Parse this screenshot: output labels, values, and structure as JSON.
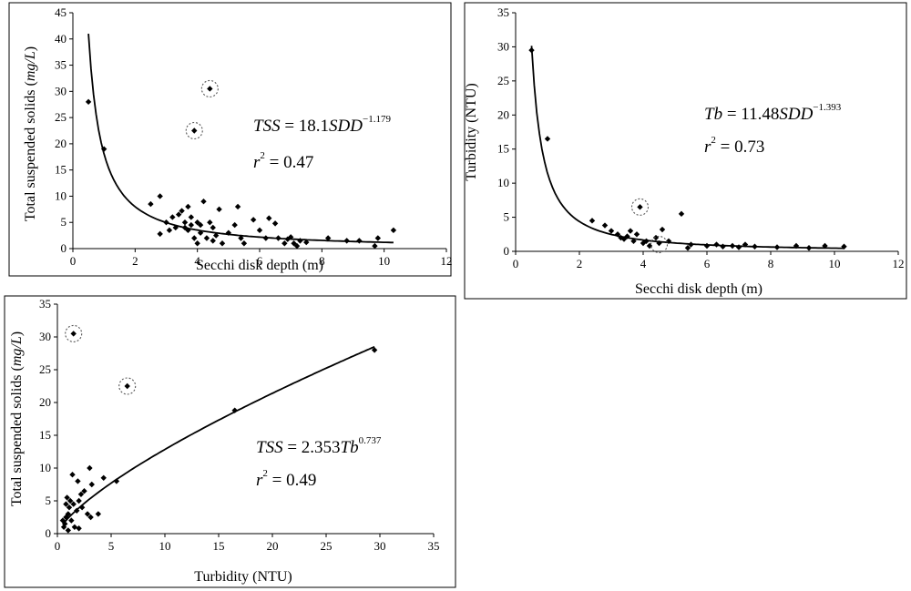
{
  "chart_data": [
    {
      "id": "p1",
      "type": "scatter",
      "xlabel": "Secchi disk depth (m)",
      "ylabel": "Total suspended solids (mg/L)",
      "ylabel_main": "Total suspended solids (",
      "ylabel_unit": "mg/L",
      "ylabel_end": ")",
      "xlim": [
        0,
        12
      ],
      "ylim": [
        0,
        45
      ],
      "xticks": [
        0,
        2,
        4,
        6,
        8,
        10,
        12
      ],
      "yticks": [
        0,
        5,
        10,
        15,
        20,
        25,
        30,
        35,
        40,
        45
      ],
      "equation": {
        "lhs": "TSS",
        "rhs_num": " = 18.1",
        "var": "SDD",
        "exp": "−1.179"
      },
      "r2": {
        "r": "r",
        "exp": "2",
        "val": " = 0.47"
      },
      "fit": {
        "a": 18.1,
        "b": -1.179,
        "x_range": [
          0.5,
          10.3
        ]
      },
      "points": [
        [
          0.5,
          28
        ],
        [
          1.0,
          19
        ],
        [
          2.5,
          8.5
        ],
        [
          2.8,
          10
        ],
        [
          2.8,
          2.8
        ],
        [
          3.0,
          5
        ],
        [
          3.1,
          3.5
        ],
        [
          3.2,
          6
        ],
        [
          3.3,
          4
        ],
        [
          3.4,
          6.5
        ],
        [
          3.5,
          7.2
        ],
        [
          3.6,
          5
        ],
        [
          3.6,
          4
        ],
        [
          3.7,
          3.5
        ],
        [
          3.7,
          8
        ],
        [
          3.8,
          4.5
        ],
        [
          3.8,
          6
        ],
        [
          3.9,
          2
        ],
        [
          3.9,
          22.5
        ],
        [
          4.0,
          1
        ],
        [
          4.0,
          5
        ],
        [
          4.1,
          3
        ],
        [
          4.1,
          4.5
        ],
        [
          4.2,
          9
        ],
        [
          4.3,
          2
        ],
        [
          4.4,
          5
        ],
        [
          4.4,
          30.5
        ],
        [
          4.5,
          1.5
        ],
        [
          4.5,
          4
        ],
        [
          4.6,
          2.5
        ],
        [
          4.7,
          7.5
        ],
        [
          4.8,
          1
        ],
        [
          5.0,
          3
        ],
        [
          5.2,
          4.5
        ],
        [
          5.3,
          8
        ],
        [
          5.4,
          2
        ],
        [
          5.5,
          1
        ],
        [
          5.8,
          5.5
        ],
        [
          6.0,
          3.5
        ],
        [
          6.2,
          2
        ],
        [
          6.3,
          5.8
        ],
        [
          6.5,
          4.8
        ],
        [
          6.6,
          2
        ],
        [
          6.8,
          1
        ],
        [
          6.9,
          1.8
        ],
        [
          7.0,
          2.2
        ],
        [
          7.1,
          1
        ],
        [
          7.2,
          0.5
        ],
        [
          7.3,
          1.5
        ],
        [
          7.5,
          1.2
        ],
        [
          8.2,
          2
        ],
        [
          8.8,
          1.5
        ],
        [
          9.2,
          1.5
        ],
        [
          9.7,
          0.5
        ],
        [
          9.8,
          2
        ],
        [
          10.3,
          3.5
        ]
      ],
      "circled": [
        [
          3.9,
          22.5
        ],
        [
          4.4,
          30.5
        ]
      ]
    },
    {
      "id": "p2",
      "type": "scatter",
      "xlabel": "Secchi disk depth (m)",
      "ylabel": "Turbidity (NTU)",
      "xlim": [
        0,
        12
      ],
      "ylim": [
        0,
        35
      ],
      "xticks": [
        0,
        2,
        4,
        6,
        8,
        10,
        12
      ],
      "yticks": [
        0,
        5,
        10,
        15,
        20,
        25,
        30,
        35
      ],
      "equation": {
        "lhs": "Tb",
        "rhs_num": " = 11.48",
        "var": "SDD",
        "exp": "−1.393"
      },
      "r2": {
        "r": "r",
        "exp": "2",
        "val": " = 0.73"
      },
      "fit": {
        "a": 11.48,
        "b": -1.393,
        "x_range": [
          0.5,
          10.3
        ]
      },
      "points": [
        [
          0.5,
          29.5
        ],
        [
          1.0,
          16.5
        ],
        [
          2.4,
          4.5
        ],
        [
          2.8,
          3.8
        ],
        [
          3.0,
          3
        ],
        [
          3.2,
          2.5
        ],
        [
          3.3,
          2
        ],
        [
          3.4,
          1.8
        ],
        [
          3.5,
          2.2
        ],
        [
          3.6,
          3
        ],
        [
          3.7,
          1.5
        ],
        [
          3.8,
          2.5
        ],
        [
          3.9,
          6.5
        ],
        [
          4.0,
          1.2
        ],
        [
          4.1,
          1.5
        ],
        [
          4.2,
          0.8
        ],
        [
          4.4,
          2
        ],
        [
          4.5,
          1.2
        ],
        [
          4.6,
          3.2
        ],
        [
          4.8,
          1.5
        ],
        [
          5.2,
          5.5
        ],
        [
          5.4,
          0.5
        ],
        [
          5.5,
          1
        ],
        [
          6.0,
          0.8
        ],
        [
          6.3,
          1
        ],
        [
          6.5,
          0.7
        ],
        [
          6.8,
          0.8
        ],
        [
          7.0,
          0.6
        ],
        [
          7.2,
          1
        ],
        [
          7.5,
          0.7
        ],
        [
          8.2,
          0.6
        ],
        [
          8.8,
          0.8
        ],
        [
          9.2,
          0.5
        ],
        [
          9.7,
          0.8
        ],
        [
          10.3,
          0.7
        ]
      ],
      "circled": [
        [
          3.9,
          6.5
        ],
        [
          4.5,
          1.0
        ]
      ]
    },
    {
      "id": "p3",
      "type": "scatter",
      "xlabel": "Turbidity (NTU)",
      "ylabel": "Total suspended solids (mg/L)",
      "ylabel_main": "Total suspended solids (",
      "ylabel_unit": "mg/L",
      "ylabel_end": ")",
      "xlim": [
        0,
        35
      ],
      "ylim": [
        0,
        35
      ],
      "xticks": [
        0,
        5,
        10,
        15,
        20,
        25,
        30,
        35
      ],
      "yticks": [
        0,
        5,
        10,
        15,
        20,
        25,
        30,
        35
      ],
      "equation": {
        "lhs": "TSS",
        "rhs_num": " = 2.353",
        "var": "Tb",
        "exp": "0.737"
      },
      "r2": {
        "r": "r",
        "exp": "2",
        "val": " = 0.49"
      },
      "fit": {
        "a": 2.353,
        "b": 0.737,
        "x_range": [
          0.5,
          29.5
        ]
      },
      "points": [
        [
          0.5,
          2
        ],
        [
          0.6,
          1
        ],
        [
          0.7,
          1.5
        ],
        [
          0.8,
          2.5
        ],
        [
          0.8,
          4.5
        ],
        [
          0.9,
          5.5
        ],
        [
          1.0,
          0.5
        ],
        [
          1.0,
          3
        ],
        [
          1.1,
          4
        ],
        [
          1.2,
          5
        ],
        [
          1.3,
          2
        ],
        [
          1.4,
          9
        ],
        [
          1.5,
          4.5
        ],
        [
          1.5,
          30.5
        ],
        [
          1.6,
          1
        ],
        [
          1.8,
          3.5
        ],
        [
          1.9,
          8
        ],
        [
          2.0,
          0.8
        ],
        [
          2.0,
          5
        ],
        [
          2.2,
          6
        ],
        [
          2.3,
          4
        ],
        [
          2.5,
          6.5
        ],
        [
          2.8,
          3
        ],
        [
          3.0,
          10
        ],
        [
          3.1,
          2.5
        ],
        [
          3.2,
          7.5
        ],
        [
          3.8,
          3
        ],
        [
          4.3,
          8.5
        ],
        [
          5.5,
          8
        ],
        [
          6.5,
          22.5
        ],
        [
          16.5,
          18.8
        ],
        [
          29.5,
          28
        ]
      ],
      "circled": [
        [
          1.5,
          30.5
        ],
        [
          6.5,
          22.5
        ]
      ]
    }
  ]
}
